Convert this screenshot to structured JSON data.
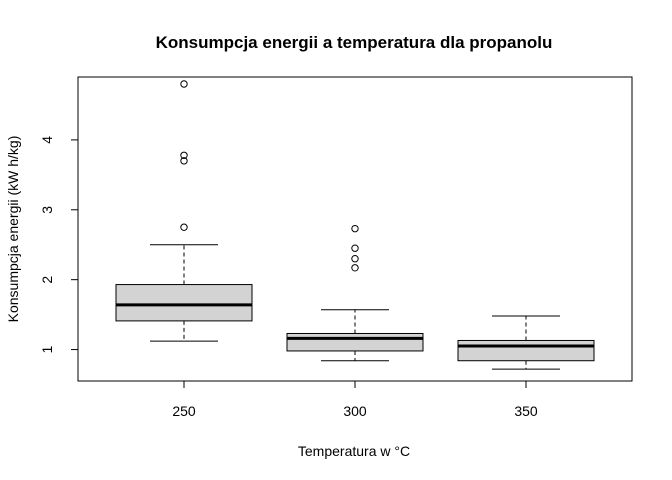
{
  "chart_data": {
    "type": "boxplot",
    "title": "Konsumpcja energii a temperatura dla propanolu",
    "xlabel": "Temperatura w °C",
    "ylabel": "Konsumpcja energii (kW h/kg)",
    "ylim": [
      0.55,
      4.9
    ],
    "yticks": [
      "1",
      "2",
      "3",
      "4"
    ],
    "categories": [
      "250",
      "300",
      "350"
    ],
    "box_fill": "#d3d3d3",
    "grid": false,
    "legend": "none",
    "boxes": [
      {
        "category": "250",
        "whisker_low": 1.12,
        "q1": 1.41,
        "median": 1.64,
        "q3": 1.93,
        "whisker_high": 2.5,
        "outliers": [
          2.75,
          3.7,
          3.78,
          4.8
        ]
      },
      {
        "category": "300",
        "whisker_low": 0.84,
        "q1": 0.98,
        "median": 1.16,
        "q3": 1.23,
        "whisker_high": 1.57,
        "outliers": [
          2.17,
          2.3,
          2.45,
          2.73
        ]
      },
      {
        "category": "350",
        "whisker_low": 0.72,
        "q1": 0.84,
        "median": 1.05,
        "q3": 1.13,
        "whisker_high": 1.48,
        "outliers": []
      }
    ]
  }
}
